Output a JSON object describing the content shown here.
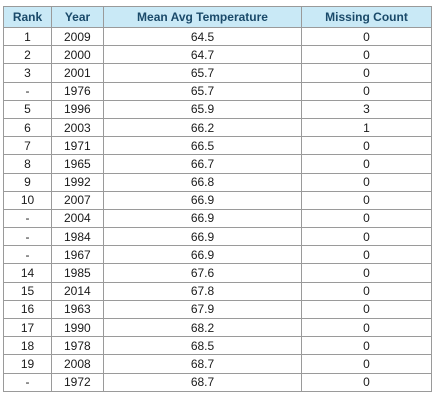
{
  "table": {
    "headers": [
      "Rank",
      "Year",
      "Mean Avg Temperature",
      "Missing Count"
    ],
    "rows": [
      [
        "1",
        "2009",
        "64.5",
        "0"
      ],
      [
        "2",
        "2000",
        "64.7",
        "0"
      ],
      [
        "3",
        "2001",
        "65.7",
        "0"
      ],
      [
        "-",
        "1976",
        "65.7",
        "0"
      ],
      [
        "5",
        "1996",
        "65.9",
        "3"
      ],
      [
        "6",
        "2003",
        "66.2",
        "1"
      ],
      [
        "7",
        "1971",
        "66.5",
        "0"
      ],
      [
        "8",
        "1965",
        "66.7",
        "0"
      ],
      [
        "9",
        "1992",
        "66.8",
        "0"
      ],
      [
        "10",
        "2007",
        "66.9",
        "0"
      ],
      [
        "-",
        "2004",
        "66.9",
        "0"
      ],
      [
        "-",
        "1984",
        "66.9",
        "0"
      ],
      [
        "-",
        "1967",
        "66.9",
        "0"
      ],
      [
        "14",
        "1985",
        "67.6",
        "0"
      ],
      [
        "15",
        "2014",
        "67.8",
        "0"
      ],
      [
        "16",
        "1963",
        "67.9",
        "0"
      ],
      [
        "17",
        "1990",
        "68.2",
        "0"
      ],
      [
        "18",
        "1978",
        "68.5",
        "0"
      ],
      [
        "19",
        "2008",
        "68.7",
        "0"
      ],
      [
        "-",
        "1972",
        "68.7",
        "0"
      ]
    ]
  },
  "colors": {
    "header_bg": "#c9e9f6",
    "header_text": "#1a4a6a",
    "border": "#9a9a9a"
  }
}
